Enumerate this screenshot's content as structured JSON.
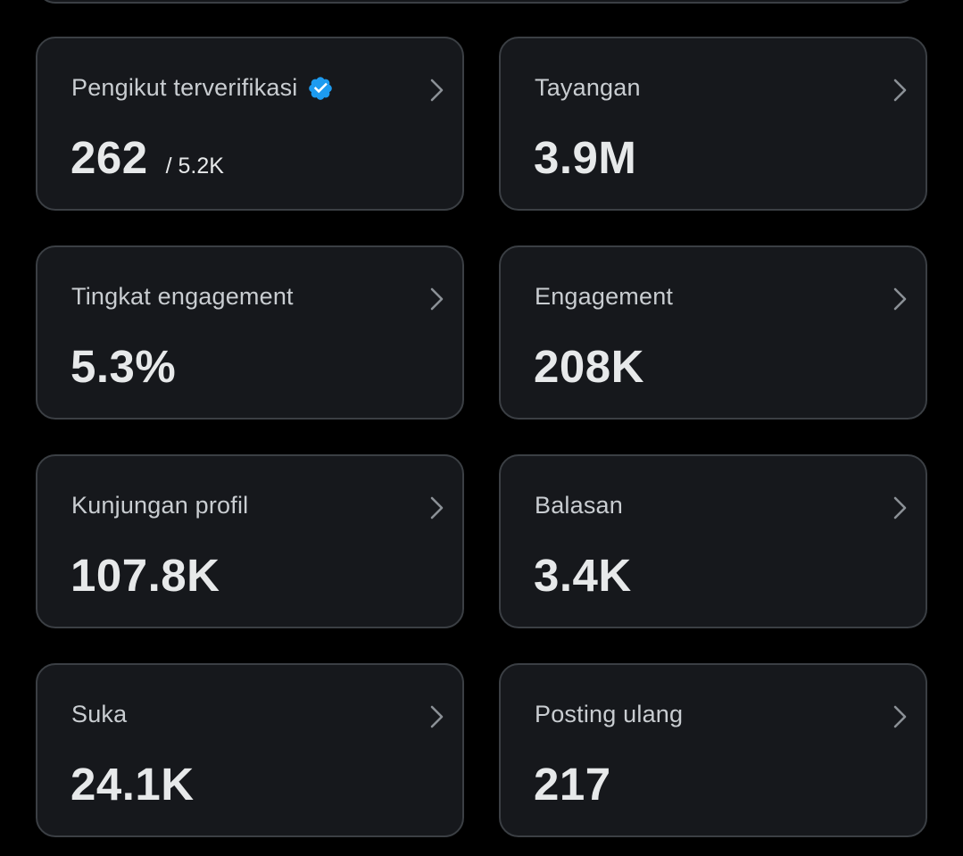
{
  "stats": [
    {
      "label": "Pengikut terverifikasi",
      "value": "262",
      "secondary": "/ 5.2K",
      "verified": true
    },
    {
      "label": "Tayangan",
      "value": "3.9M"
    },
    {
      "label": "Tingkat engagement",
      "value": "5.3%"
    },
    {
      "label": "Engagement",
      "value": "208K"
    },
    {
      "label": "Kunjungan profil",
      "value": "107.8K"
    },
    {
      "label": "Balasan",
      "value": "3.4K"
    },
    {
      "label": "Suka",
      "value": "24.1K"
    },
    {
      "label": "Posting ulang",
      "value": "217"
    }
  ],
  "colors": {
    "background": "#000000",
    "card": "#16181c",
    "border": "#3b3f44",
    "text": "#e7e9ea",
    "label": "#c9cdd1",
    "verified": "#1d9bf0"
  },
  "icons": {
    "verified": "verified-badge-icon",
    "chevron": "chevron-right-icon"
  }
}
